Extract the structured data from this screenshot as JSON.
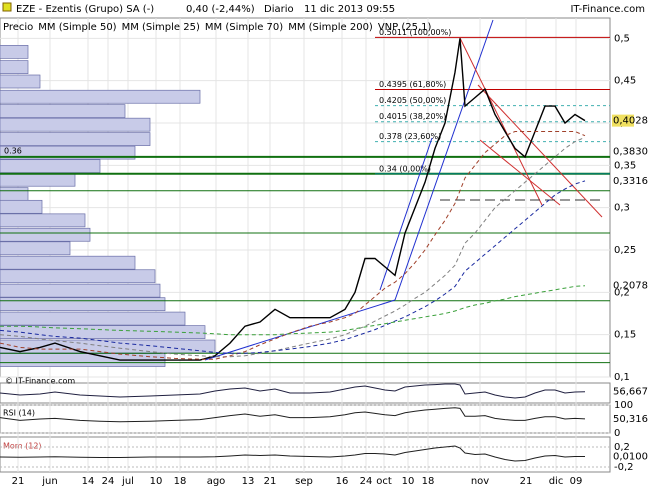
{
  "chart_data": [
    {
      "type": "line",
      "title": "EZE - Ezentis (Grupo) SA (-)",
      "price_change": "0,40 (-2,44%)",
      "period": "Diario",
      "timestamp": "11 dic 2013 09:55",
      "source": "IT-Finance.com",
      "watermark": "© IT-Finance.com",
      "x": [
        0,
        5,
        10,
        13.75,
        20,
        25,
        30,
        37.5,
        43.75,
        50,
        53.75,
        57.5,
        61.25,
        65,
        68.75,
        72.5,
        77.5,
        82.5,
        86.25,
        88.75,
        91.25,
        93.75,
        96.25,
        98.75,
        101.25,
        103.75,
        106.25,
        108.75,
        111.25,
        113.75,
        115,
        116.25,
        118.75,
        121.25,
        123.75,
        126.25,
        128.75,
        131.25,
        133.75,
        136.25,
        138.75,
        141.25,
        143.75,
        146.25
      ],
      "xlim": [
        0,
        152.5
      ],
      "xticks": [
        {
          "value": 4.5,
          "label": "21"
        },
        {
          "value": 12.5,
          "label": "jun"
        },
        {
          "value": 22,
          "label": "14"
        },
        {
          "value": 27,
          "label": "24"
        },
        {
          "value": 32,
          "label": "jul"
        },
        {
          "value": 39,
          "label": "10"
        },
        {
          "value": 45,
          "label": "18"
        },
        {
          "value": 54,
          "label": "ago"
        },
        {
          "value": 62,
          "label": "13"
        },
        {
          "value": 67.5,
          "label": "21"
        },
        {
          "value": 76,
          "label": "sep"
        },
        {
          "value": 85.5,
          "label": "16"
        },
        {
          "value": 91.5,
          "label": "24"
        },
        {
          "value": 96,
          "label": "oct"
        },
        {
          "value": 102,
          "label": "10"
        },
        {
          "value": 107,
          "label": "18"
        },
        {
          "value": 120,
          "label": "nov"
        },
        {
          "value": 131.5,
          "label": "21"
        },
        {
          "value": 139,
          "label": "dic"
        },
        {
          "value": 144,
          "label": "09"
        }
      ],
      "ylim": [
        0.1,
        0.524
      ],
      "yticks": [
        {
          "value": 0.1,
          "label": "0,1"
        },
        {
          "value": 0.15,
          "label": "0,15"
        },
        {
          "value": 0.2,
          "label": "0,2"
        },
        {
          "value": 0.25,
          "label": "0,25"
        },
        {
          "value": 0.3,
          "label": "0,3"
        },
        {
          "value": 0.35,
          "label": "0,35"
        },
        {
          "value": 0.4,
          "label": "0,4"
        },
        {
          "value": 0.45,
          "label": "0,45"
        },
        {
          "value": 0.5,
          "label": "0,5"
        }
      ],
      "series": [
        {
          "name": "Precio",
          "color": "#000000",
          "dash": false,
          "last_label": "0,4028",
          "values": [
            0.135,
            0.13,
            0.135,
            0.14,
            0.13,
            0.125,
            0.12,
            0.12,
            0.12,
            0.12,
            0.125,
            0.14,
            0.16,
            0.165,
            0.18,
            0.17,
            0.17,
            0.17,
            0.18,
            0.2,
            0.24,
            0.24,
            0.23,
            0.22,
            0.27,
            0.3,
            0.33,
            0.37,
            0.4,
            0.46,
            0.5,
            0.42,
            0.43,
            0.44,
            0.41,
            0.39,
            0.37,
            0.36,
            0.39,
            0.42,
            0.42,
            0.4,
            0.41,
            0.4028
          ]
        },
        {
          "name": "MM (Simple 50)",
          "color": "#808080",
          "dash": true,
          "last_label": "0,3830",
          "values": [
            0.15,
            0.148,
            0.145,
            0.143,
            0.14,
            0.137,
            0.134,
            0.13,
            0.127,
            0.125,
            0.124,
            0.124,
            0.125,
            0.128,
            0.131,
            0.135,
            0.14,
            0.145,
            0.15,
            0.155,
            0.16,
            0.166,
            0.172,
            0.178,
            0.185,
            0.193,
            0.2,
            0.21,
            0.22,
            0.232,
            0.245,
            0.258,
            0.27,
            0.285,
            0.3,
            0.31,
            0.32,
            0.33,
            0.34,
            0.35,
            0.36,
            0.37,
            0.378,
            0.383
          ]
        },
        {
          "name": "MM (Simple 25)",
          "color": "#a0402a",
          "dash": true,
          "values": [
            0.14,
            0.135,
            0.133,
            0.133,
            0.133,
            0.13,
            0.127,
            0.124,
            0.122,
            0.121,
            0.121,
            0.125,
            0.13,
            0.138,
            0.145,
            0.152,
            0.16,
            0.165,
            0.17,
            0.175,
            0.185,
            0.195,
            0.205,
            0.212,
            0.222,
            0.235,
            0.25,
            0.268,
            0.285,
            0.305,
            0.32,
            0.335,
            0.35,
            0.365,
            0.375,
            0.385,
            0.39,
            0.39,
            0.39,
            0.39,
            0.39,
            0.39,
            0.39,
            0.385
          ]
        },
        {
          "name": "MM (Simple 70)",
          "color": "#1a2aa0",
          "dash": true,
          "last_label": "0,3316",
          "values": [
            0.155,
            0.153,
            0.15,
            0.148,
            0.146,
            0.143,
            0.14,
            0.137,
            0.134,
            0.131,
            0.129,
            0.128,
            0.128,
            0.129,
            0.131,
            0.133,
            0.136,
            0.14,
            0.144,
            0.148,
            0.152,
            0.156,
            0.161,
            0.166,
            0.171,
            0.177,
            0.183,
            0.19,
            0.198,
            0.207,
            0.216,
            0.225,
            0.235,
            0.245,
            0.255,
            0.265,
            0.275,
            0.285,
            0.295,
            0.305,
            0.315,
            0.322,
            0.328,
            0.3316
          ]
        },
        {
          "name": "MM (Simple 200)",
          "color": "#3aa03a",
          "dash": true,
          "last_label": "0,2078",
          "values": [
            0.16,
            0.16,
            0.159,
            0.158,
            0.157,
            0.156,
            0.155,
            0.154,
            0.153,
            0.152,
            0.151,
            0.15,
            0.15,
            0.15,
            0.15,
            0.151,
            0.152,
            0.153,
            0.155,
            0.157,
            0.159,
            0.161,
            0.163,
            0.165,
            0.167,
            0.169,
            0.171,
            0.173,
            0.175,
            0.178,
            0.18,
            0.182,
            0.185,
            0.187,
            0.19,
            0.192,
            0.195,
            0.197,
            0.199,
            0.201,
            0.203,
            0.205,
            0.207,
            0.2078
          ]
        }
      ],
      "volume_profile": {
        "name": "VNP (25,1)",
        "color": "#c8cbe8",
        "levels": [
          0.484,
          0.466,
          0.449,
          0.431,
          0.414,
          0.398,
          0.381,
          0.365,
          0.349,
          0.333,
          0.316,
          0.301,
          0.285,
          0.268,
          0.252,
          0.235,
          0.219,
          0.202,
          0.186,
          0.169,
          0.153,
          0.136,
          0.12
        ],
        "values": [
          28,
          28,
          40,
          200,
          125,
          150,
          150,
          135,
          100,
          75,
          28,
          42,
          85,
          90,
          70,
          135,
          155,
          160,
          165,
          185,
          205,
          215,
          165
        ]
      },
      "fibonacci": [
        {
          "value": 0.5011,
          "label": "0.5011 (100,00%)",
          "color": "#c00000"
        },
        {
          "value": 0.4395,
          "label": "0.4395 (61,80%)",
          "color": "#c00000"
        },
        {
          "value": 0.4205,
          "label": "0.4205 (50,00%)",
          "color": "#40b0b0"
        },
        {
          "value": 0.4015,
          "label": "0.4015 (38,20%)",
          "color": "#40b0b0"
        },
        {
          "value": 0.378,
          "label": "0.378 (23,60%)",
          "color": "#40b0b0"
        },
        {
          "value": 0.34,
          "label": "0.34 (0,00%)",
          "color": "#008080"
        }
      ],
      "support": [
        0.36,
        0.34,
        0.32,
        0.27,
        0.19,
        0.128,
        0.117
      ],
      "support_color": "#107010"
    },
    {
      "type": "line",
      "ylim": [
        0,
        100
      ],
      "series": [
        {
          "color": "#202040",
          "last_label": "56,667",
          "values": [
            50,
            40,
            45,
            55,
            40,
            35,
            30,
            35,
            40,
            45,
            60,
            70,
            75,
            60,
            70,
            50,
            50,
            55,
            70,
            80,
            85,
            75,
            65,
            60,
            80,
            85,
            90,
            92,
            95,
            95,
            90,
            45,
            50,
            55,
            40,
            30,
            25,
            30,
            50,
            65,
            65,
            50,
            55,
            56.667
          ]
        }
      ]
    },
    {
      "type": "line",
      "name": "RSI (14)",
      "ylim": [
        0,
        100
      ],
      "yticks": [
        100,
        0
      ],
      "series": [
        {
          "color": "#202020",
          "last_label": "50,316",
          "values": [
            55,
            45,
            50,
            52,
            45,
            42,
            40,
            42,
            45,
            48,
            55,
            62,
            68,
            60,
            65,
            55,
            55,
            58,
            65,
            72,
            75,
            70,
            65,
            62,
            72,
            78,
            82,
            85,
            88,
            90,
            88,
            60,
            60,
            62,
            52,
            48,
            45,
            45,
            52,
            58,
            58,
            50,
            52,
            50.316
          ]
        }
      ]
    },
    {
      "type": "line",
      "name": "Mom (12)",
      "ylim": [
        -0.3,
        0.4
      ],
      "yticks": [
        {
          "value": 0.2,
          "label": "0,2"
        },
        {
          "value": -0.2,
          "label": "-0,2"
        }
      ],
      "series": [
        {
          "color": "#202020",
          "last_label": "0,0100",
          "values": [
            0,
            -0.005,
            0,
            0.005,
            -0.005,
            -0.01,
            -0.01,
            0,
            0,
            0,
            0.005,
            0.02,
            0.04,
            0.03,
            0.04,
            0.02,
            0.01,
            0,
            0.02,
            0.04,
            0.07,
            0.07,
            0.06,
            0.04,
            0.09,
            0.12,
            0.15,
            0.18,
            0.2,
            0.22,
            0.18,
            0.08,
            0.05,
            0.06,
            0,
            -0.05,
            -0.08,
            -0.07,
            -0.02,
            0.02,
            0.03,
            0,
            0.01,
            0.01
          ]
        }
      ]
    }
  ]
}
